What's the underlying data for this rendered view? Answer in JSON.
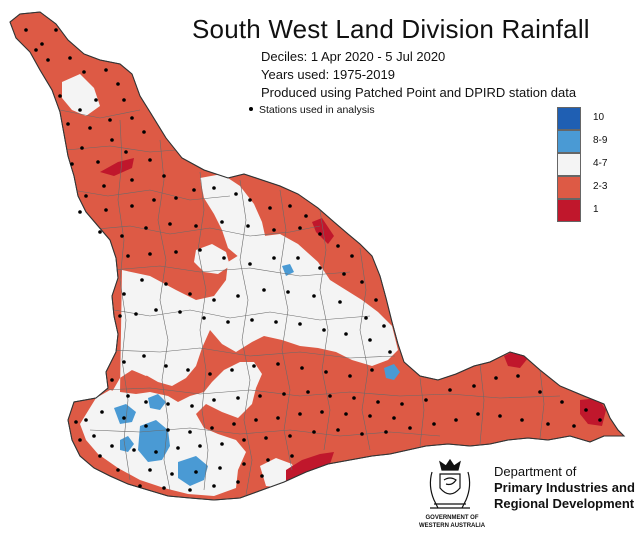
{
  "title": "South West Land Division Rainfall",
  "subtitle_lines": [
    "Deciles:  1 Apr 2020 -  5 Jul 2020",
    "Years used: 1975-2019",
    "Produced using Patched Point and DPIRD station data"
  ],
  "stations_note": "Stations used in analysis",
  "legend": [
    {
      "label": "10",
      "color": "#1f5fb3"
    },
    {
      "label": "8-9",
      "color": "#4a9ad4"
    },
    {
      "label": "4-7",
      "color": "#f4f4f4"
    },
    {
      "label": "2-3",
      "color": "#dd5a45"
    },
    {
      "label": "1",
      "color": "#c0172c"
    }
  ],
  "colors": {
    "decile_2_3": "#dd5a45",
    "decile_1": "#c0172c",
    "decile_4_7": "#f4f4f4",
    "decile_8_9": "#4a9ad4",
    "decile_10": "#1f5fb3",
    "boundary": "#555555",
    "station": "#000000"
  },
  "organisation": {
    "line1": "Department of",
    "line2": "Primary Industries and",
    "line3": "Regional Development",
    "gov_line1": "GOVERNMENT OF",
    "gov_line2": "WESTERN AUSTRALIA",
    "crest": "wa-government-crest-icon"
  }
}
